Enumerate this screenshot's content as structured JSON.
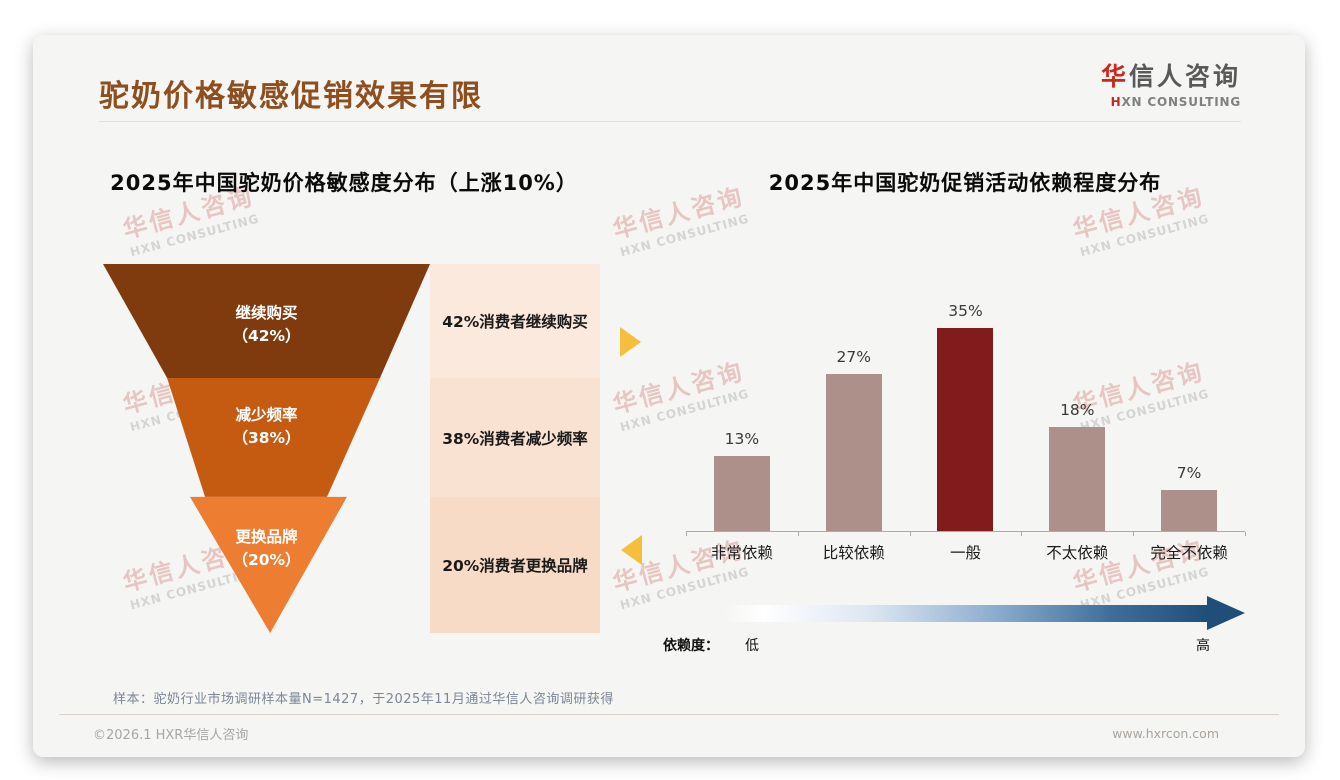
{
  "page": {
    "title": "驼奶价格敏感促销效果有限",
    "logo": {
      "zh_accent": "华",
      "zh_rest": "信人咨询",
      "en_accent": "H",
      "en_rest": "XN CONSULTING"
    },
    "watermark": {
      "line1": "华信人咨询",
      "line2": "HXN CONSULTING"
    },
    "footnote": "样本：驼奶行业市场调研样本量N=1427，于2025年11月通过华信人咨询调研获得",
    "footer": {
      "left": "©2026.1 HXR华信人咨询",
      "right": "www.hxrcon.com"
    }
  },
  "colors": {
    "title_brown": "#8E4E1E",
    "logo_red": "#C8281E",
    "arrow_gold": "#F5BE3D",
    "gradient_start": "#FFFFFF",
    "gradient_end": "#1F4E79"
  },
  "chart_data": [
    {
      "type": "funnel",
      "title": "2025年中国驼奶价格敏感度分布（上涨10%）",
      "unit": "%",
      "segments": [
        {
          "label": "继续购买",
          "pct_label": "（42%）",
          "value": 42,
          "annotation": "42%消费者继续购买",
          "color": "#7F3B0E",
          "annotation_bg": "#FBE9DD"
        },
        {
          "label": "减少频率",
          "pct_label": "（38%）",
          "value": 38,
          "annotation": "38%消费者减少频率",
          "color": "#C55A11",
          "annotation_bg": "#FAE2D3"
        },
        {
          "label": "更换品牌",
          "pct_label": "（20%）",
          "value": 20,
          "annotation": "20%消费者更换品牌",
          "color": "#ED7D31",
          "annotation_bg": "#F8DBC7"
        }
      ]
    },
    {
      "type": "bar",
      "title": "2025年中国驼奶促销活动依赖程度分布",
      "categories": [
        "非常依赖",
        "比较依赖",
        "一般",
        "不太依赖",
        "完全不依赖"
      ],
      "values": [
        13,
        27,
        35,
        18,
        7
      ],
      "value_labels": [
        "13%",
        "27%",
        "35%",
        "18%",
        "7%"
      ],
      "bar_color": "#AC9089",
      "highlight_index": 2,
      "highlight_color": "#821C1C",
      "ylim": [
        0,
        40
      ],
      "grid": false,
      "dependency_scale": {
        "prefix": "依赖度：",
        "low": "低",
        "high": "高"
      }
    }
  ]
}
